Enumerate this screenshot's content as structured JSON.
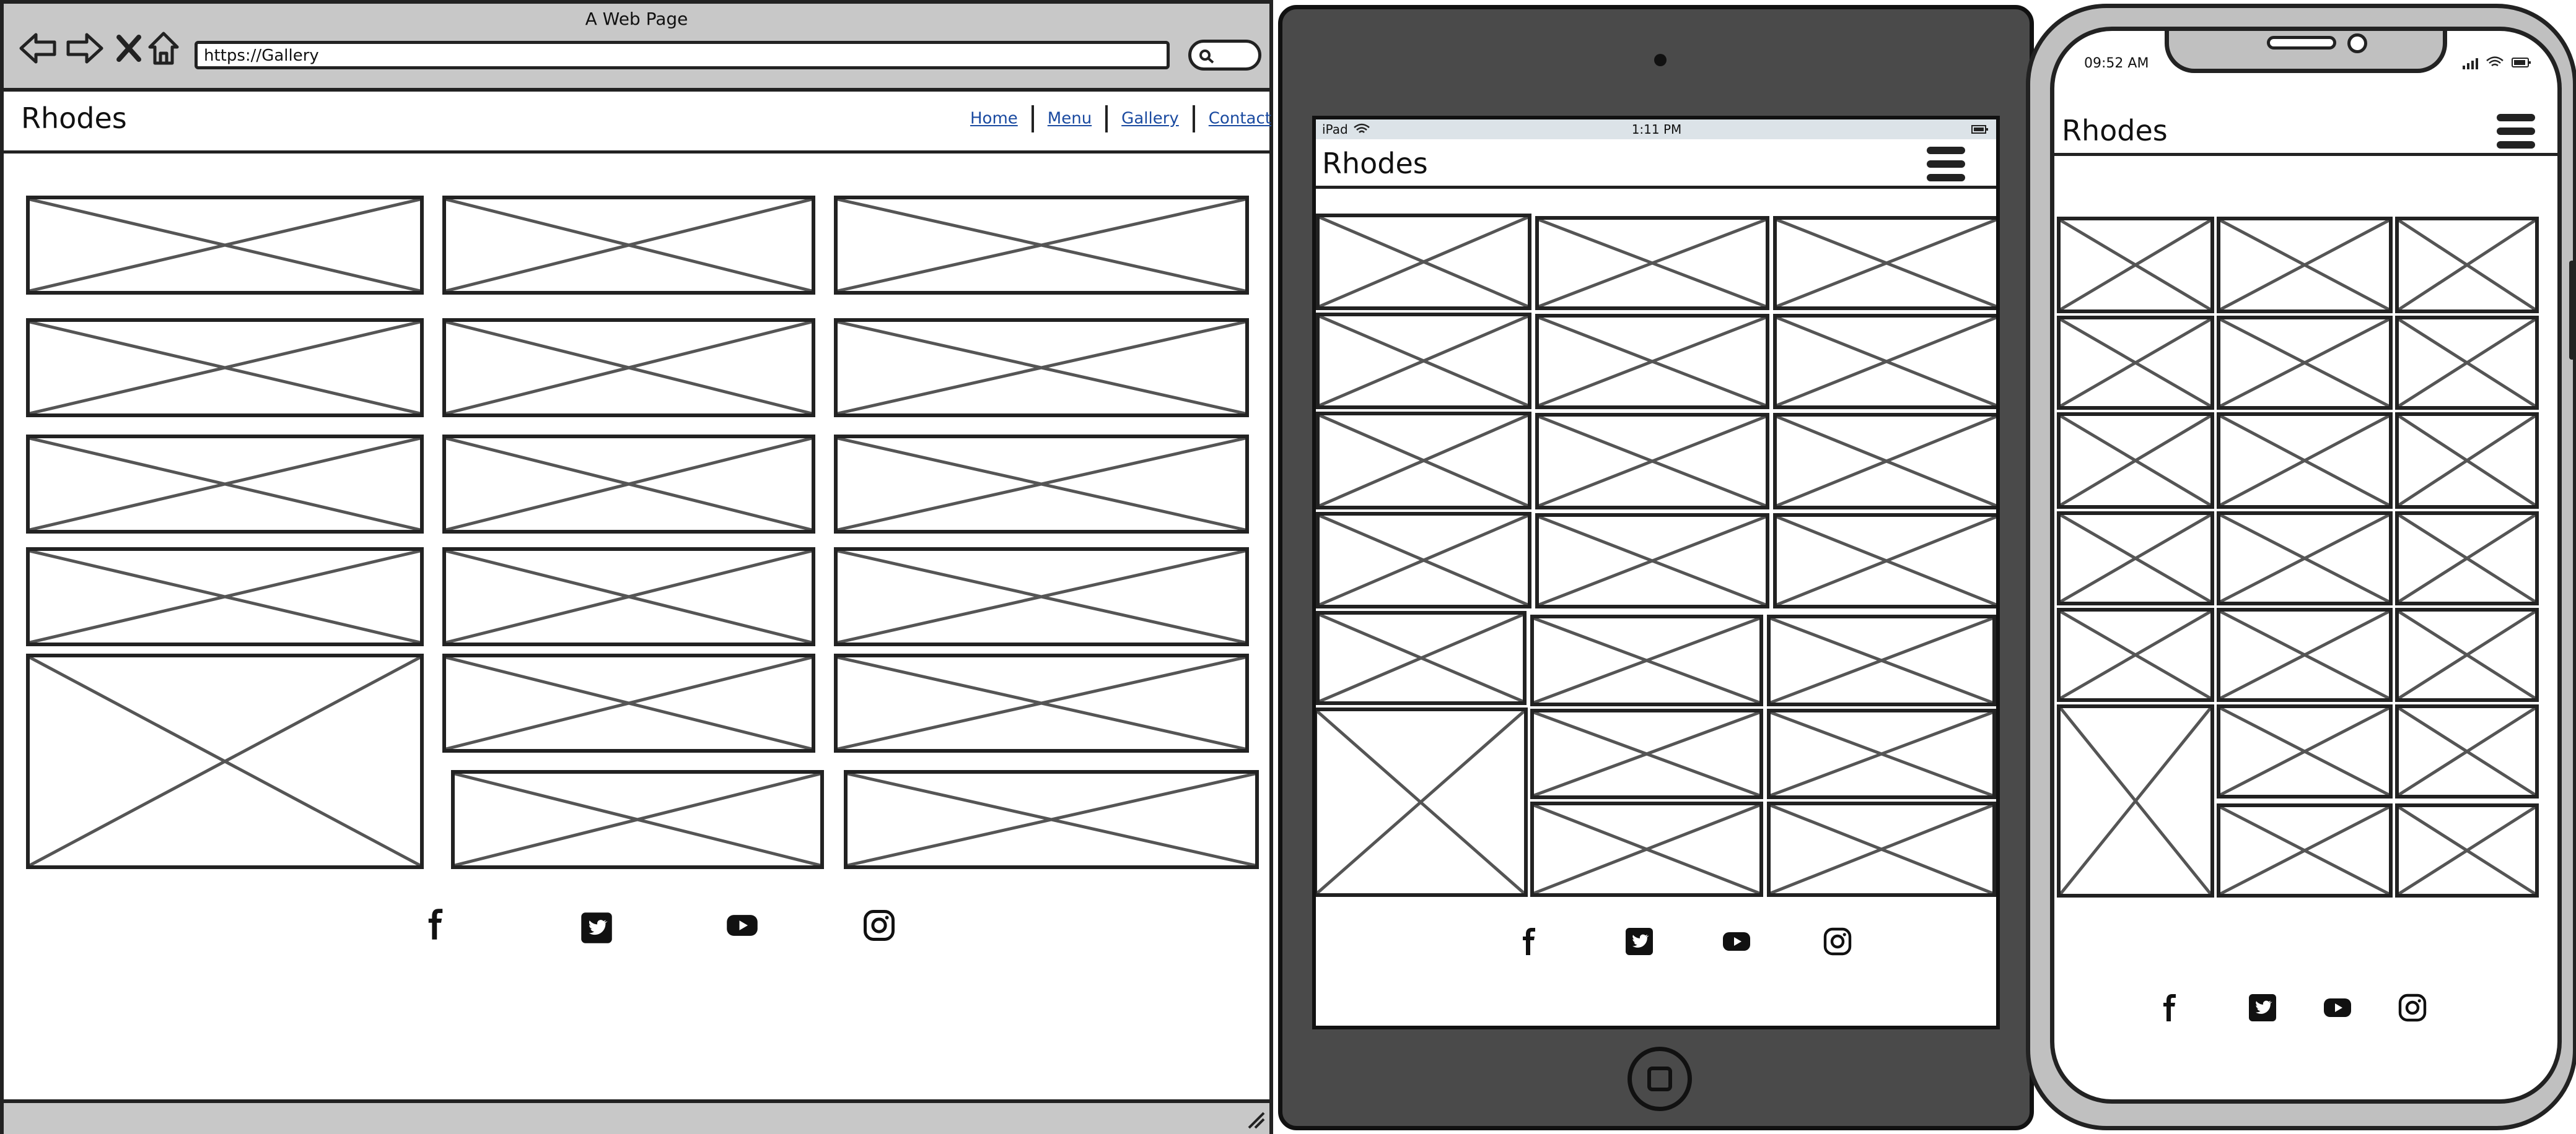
{
  "browser": {
    "window_title": "A Web Page",
    "url": "https://Gallery",
    "site_title": "Rhodes",
    "nav": [
      {
        "label": "Home"
      },
      {
        "label": "Menu"
      },
      {
        "label": "Gallery"
      },
      {
        "label": "Contact"
      }
    ]
  },
  "tablet": {
    "status_left": "iPad",
    "time": "1:11 PM",
    "site_title": "Rhodes"
  },
  "phone": {
    "time": "09:52 AM",
    "site_title": "Rhodes"
  },
  "social_icons": [
    "facebook-icon",
    "twitter-icon",
    "youtube-icon",
    "instagram-icon"
  ],
  "colors": {
    "chrome": "#c8c8c8",
    "tablet_body": "#4a4a4a",
    "link": "#1a4aa0"
  }
}
